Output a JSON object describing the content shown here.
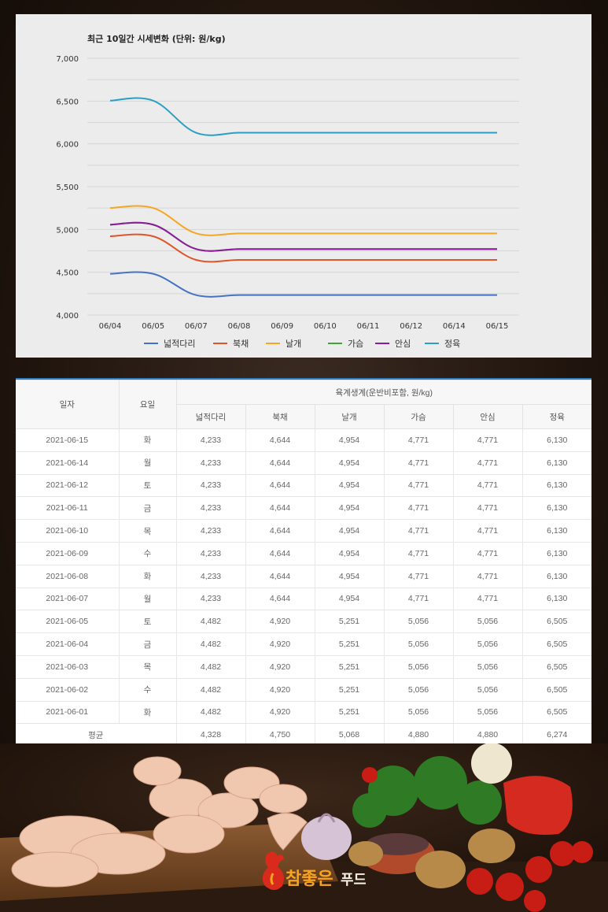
{
  "chart_data": {
    "type": "line",
    "title": "최근 10일간 시세변화 (단위: 원/kg)",
    "categories": [
      "06/04",
      "06/05",
      "06/07",
      "06/08",
      "06/09",
      "06/10",
      "06/11",
      "06/12",
      "06/14",
      "06/15"
    ],
    "ylim": [
      4000,
      7000
    ],
    "yticks": [
      4000,
      4500,
      5000,
      5500,
      6000,
      6500,
      7000
    ],
    "ytick_labels": [
      "4,000",
      "4,500",
      "5,000",
      "5,500",
      "6,000",
      "6,500",
      "7,000"
    ],
    "grid": true,
    "legend_position": "bottom",
    "series": [
      {
        "name": "넓적다리",
        "color": "#4472c4",
        "values": [
          4482,
          4482,
          4233,
          4233,
          4233,
          4233,
          4233,
          4233,
          4233,
          4233
        ]
      },
      {
        "name": "북채",
        "color": "#e0542a",
        "values": [
          4920,
          4920,
          4644,
          4644,
          4644,
          4644,
          4644,
          4644,
          4644,
          4644
        ]
      },
      {
        "name": "날개",
        "color": "#f5a623",
        "values": [
          5251,
          5251,
          4954,
          4954,
          4954,
          4954,
          4954,
          4954,
          4954,
          4954
        ]
      },
      {
        "name": "가슴",
        "color": "#3aa63a",
        "values": [
          5056,
          5056,
          4771,
          4771,
          4771,
          4771,
          4771,
          4771,
          4771,
          4771
        ]
      },
      {
        "name": "안심",
        "color": "#8e1b9e",
        "values": [
          5056,
          5056,
          4771,
          4771,
          4771,
          4771,
          4771,
          4771,
          4771,
          4771
        ]
      },
      {
        "name": "정육",
        "color": "#2a9fc4",
        "values": [
          6505,
          6505,
          6130,
          6130,
          6130,
          6130,
          6130,
          6130,
          6130,
          6130
        ]
      }
    ]
  },
  "table": {
    "col_date": "일자",
    "col_day": "요일",
    "group_header": "육계생계(운반비포함, 원/kg)",
    "parts": [
      "넓적다리",
      "북채",
      "날개",
      "가슴",
      "안심",
      "정육"
    ],
    "rows": [
      {
        "date": "2021-06-15",
        "day": "화",
        "v": [
          "4,233",
          "4,644",
          "4,954",
          "4,771",
          "4,771",
          "6,130"
        ]
      },
      {
        "date": "2021-06-14",
        "day": "월",
        "v": [
          "4,233",
          "4,644",
          "4,954",
          "4,771",
          "4,771",
          "6,130"
        ]
      },
      {
        "date": "2021-06-12",
        "day": "토",
        "v": [
          "4,233",
          "4,644",
          "4,954",
          "4,771",
          "4,771",
          "6,130"
        ]
      },
      {
        "date": "2021-06-11",
        "day": "금",
        "v": [
          "4,233",
          "4,644",
          "4,954",
          "4,771",
          "4,771",
          "6,130"
        ]
      },
      {
        "date": "2021-06-10",
        "day": "목",
        "v": [
          "4,233",
          "4,644",
          "4,954",
          "4,771",
          "4,771",
          "6,130"
        ]
      },
      {
        "date": "2021-06-09",
        "day": "수",
        "v": [
          "4,233",
          "4,644",
          "4,954",
          "4,771",
          "4,771",
          "6,130"
        ]
      },
      {
        "date": "2021-06-08",
        "day": "화",
        "v": [
          "4,233",
          "4,644",
          "4,954",
          "4,771",
          "4,771",
          "6,130"
        ]
      },
      {
        "date": "2021-06-07",
        "day": "월",
        "v": [
          "4,233",
          "4,644",
          "4,954",
          "4,771",
          "4,771",
          "6,130"
        ]
      },
      {
        "date": "2021-06-05",
        "day": "토",
        "v": [
          "4,482",
          "4,920",
          "5,251",
          "5,056",
          "5,056",
          "6,505"
        ]
      },
      {
        "date": "2021-06-04",
        "day": "금",
        "v": [
          "4,482",
          "4,920",
          "5,251",
          "5,056",
          "5,056",
          "6,505"
        ]
      },
      {
        "date": "2021-06-03",
        "day": "목",
        "v": [
          "4,482",
          "4,920",
          "5,251",
          "5,056",
          "5,056",
          "6,505"
        ]
      },
      {
        "date": "2021-06-02",
        "day": "수",
        "v": [
          "4,482",
          "4,920",
          "5,251",
          "5,056",
          "5,056",
          "6,505"
        ]
      },
      {
        "date": "2021-06-01",
        "day": "화",
        "v": [
          "4,482",
          "4,920",
          "5,251",
          "5,056",
          "5,056",
          "6,505"
        ]
      }
    ],
    "avg_label": "평균",
    "avg": [
      "4,328",
      "4,750",
      "5,068",
      "4,880",
      "4,880",
      "6,274"
    ]
  },
  "brand": {
    "logo_text": "참좋은 푸드",
    "icon": "rooster-icon"
  }
}
